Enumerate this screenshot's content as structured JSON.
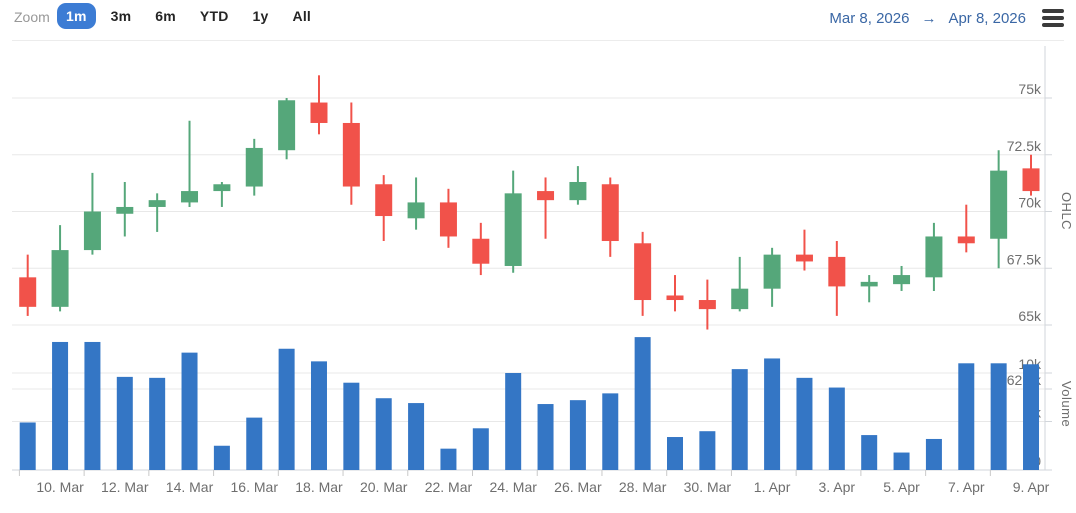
{
  "header": {
    "zoom_label": "Zoom",
    "range_buttons": [
      {
        "label": "1m",
        "selected": true
      },
      {
        "label": "3m",
        "selected": false
      },
      {
        "label": "6m",
        "selected": false
      },
      {
        "label": "YTD",
        "selected": false
      },
      {
        "label": "1y",
        "selected": false
      },
      {
        "label": "All",
        "selected": false
      }
    ],
    "date_range": {
      "from": "Mar 8, 2026",
      "arrow": "→",
      "to": "Apr 8, 2026"
    }
  },
  "colors": {
    "selected_button_bg": "#3c7cd4",
    "date_text": "#3a67a5",
    "up_candle": "#55a77a",
    "down_candle": "#f1524a",
    "volume_bar": "#3476c5",
    "gridline": "#e8e8e8",
    "axis_line": "#d2d6db",
    "axis_text": "#6e6e6e"
  },
  "chart_data": {
    "type": "candlestick",
    "subtype": "ohlc-with-volume-panes",
    "unit": "k",
    "legend_position": "none",
    "grid": true,
    "y_axis_ohlc": {
      "title": "OHLC",
      "range": [
        62.5,
        76.5
      ],
      "ticks": [
        {
          "label": "75k",
          "value": 75
        },
        {
          "label": "72.5k",
          "value": 72.5
        },
        {
          "label": "70k",
          "value": 70
        },
        {
          "label": "67.5k",
          "value": 67.5
        },
        {
          "label": "65k",
          "value": 65
        },
        {
          "label": "62.5k",
          "value": 62.5
        }
      ]
    },
    "y_axis_volume": {
      "title": "Volume",
      "range": [
        0,
        14
      ],
      "ticks": [
        {
          "label": "10k",
          "value": 10
        },
        {
          "label": "5k",
          "value": 5
        },
        {
          "label": "0",
          "value": 0
        }
      ]
    },
    "x_axis": {
      "tick_labels": [
        "10. Mar",
        "12. Mar",
        "14. Mar",
        "16. Mar",
        "18. Mar",
        "20. Mar",
        "22. Mar",
        "24. Mar",
        "26. Mar",
        "28. Mar",
        "30. Mar",
        "1. Apr",
        "3. Apr",
        "5. Apr",
        "7. Apr",
        "9. Apr"
      ],
      "label_start_index": 1,
      "label_step": 2
    },
    "candles": [
      {
        "date": "Mar 9",
        "open": 67.1,
        "high": 68.1,
        "low": 65.4,
        "close": 65.8,
        "volume": 4.9
      },
      {
        "date": "Mar 10",
        "open": 65.8,
        "high": 69.4,
        "low": 65.6,
        "close": 68.3,
        "volume": 13.2
      },
      {
        "date": "Mar 11",
        "open": 68.3,
        "high": 71.7,
        "low": 68.1,
        "close": 70.0,
        "volume": 13.2
      },
      {
        "date": "Mar 12",
        "open": 69.9,
        "high": 71.3,
        "low": 68.9,
        "close": 70.2,
        "volume": 9.6
      },
      {
        "date": "Mar 13",
        "open": 70.2,
        "high": 70.8,
        "low": 69.1,
        "close": 70.5,
        "volume": 9.5
      },
      {
        "date": "Mar 14",
        "open": 70.4,
        "high": 74.0,
        "low": 70.2,
        "close": 70.9,
        "volume": 12.1
      },
      {
        "date": "Mar 15",
        "open": 70.9,
        "high": 71.3,
        "low": 70.2,
        "close": 71.2,
        "volume": 2.5
      },
      {
        "date": "Mar 16",
        "open": 71.1,
        "high": 73.2,
        "low": 70.7,
        "close": 72.8,
        "volume": 5.4
      },
      {
        "date": "Mar 17",
        "open": 72.7,
        "high": 75.0,
        "low": 72.3,
        "close": 74.9,
        "volume": 12.5
      },
      {
        "date": "Mar 18",
        "open": 74.8,
        "high": 76.0,
        "low": 73.4,
        "close": 73.9,
        "volume": 11.2
      },
      {
        "date": "Mar 19",
        "open": 73.9,
        "high": 74.8,
        "low": 70.3,
        "close": 71.1,
        "volume": 9.0
      },
      {
        "date": "Mar 20",
        "open": 71.2,
        "high": 71.6,
        "low": 68.7,
        "close": 69.8,
        "volume": 7.4
      },
      {
        "date": "Mar 21",
        "open": 69.7,
        "high": 71.5,
        "low": 69.2,
        "close": 70.4,
        "volume": 6.9
      },
      {
        "date": "Mar 22",
        "open": 70.4,
        "high": 71.0,
        "low": 68.4,
        "close": 68.9,
        "volume": 2.2
      },
      {
        "date": "Mar 23",
        "open": 68.8,
        "high": 69.5,
        "low": 67.2,
        "close": 67.7,
        "volume": 4.3
      },
      {
        "date": "Mar 24",
        "open": 67.6,
        "high": 71.8,
        "low": 67.3,
        "close": 70.8,
        "volume": 10.0
      },
      {
        "date": "Mar 25",
        "open": 70.9,
        "high": 71.5,
        "low": 68.8,
        "close": 70.5,
        "volume": 6.8
      },
      {
        "date": "Mar 26",
        "open": 70.5,
        "high": 72.0,
        "low": 70.3,
        "close": 71.3,
        "volume": 7.2
      },
      {
        "date": "Mar 27",
        "open": 71.2,
        "high": 71.5,
        "low": 68.0,
        "close": 68.7,
        "volume": 7.9
      },
      {
        "date": "Mar 28",
        "open": 68.6,
        "high": 69.1,
        "low": 65.4,
        "close": 66.1,
        "volume": 13.7
      },
      {
        "date": "Mar 29",
        "open": 66.3,
        "high": 67.2,
        "low": 65.6,
        "close": 66.1,
        "volume": 3.4
      },
      {
        "date": "Mar 30",
        "open": 66.1,
        "high": 67.0,
        "low": 64.8,
        "close": 65.7,
        "volume": 4.0
      },
      {
        "date": "Mar 31",
        "open": 65.7,
        "high": 68.0,
        "low": 65.6,
        "close": 66.6,
        "volume": 10.4
      },
      {
        "date": "Apr 1",
        "open": 66.6,
        "high": 68.4,
        "low": 65.8,
        "close": 68.1,
        "volume": 11.5
      },
      {
        "date": "Apr 2",
        "open": 68.1,
        "high": 69.2,
        "low": 67.4,
        "close": 67.8,
        "volume": 9.5
      },
      {
        "date": "Apr 3",
        "open": 68.0,
        "high": 68.7,
        "low": 65.4,
        "close": 66.7,
        "volume": 8.5
      },
      {
        "date": "Apr 4",
        "open": 66.7,
        "high": 67.2,
        "low": 66.0,
        "close": 66.9,
        "volume": 3.6
      },
      {
        "date": "Apr 5",
        "open": 66.8,
        "high": 67.6,
        "low": 66.5,
        "close": 67.2,
        "volume": 1.8
      },
      {
        "date": "Apr 6",
        "open": 67.1,
        "high": 69.5,
        "low": 66.5,
        "close": 68.9,
        "volume": 3.2
      },
      {
        "date": "Apr 7",
        "open": 68.9,
        "high": 70.3,
        "low": 68.2,
        "close": 68.6,
        "volume": 11.0
      },
      {
        "date": "Apr 8",
        "open": 68.8,
        "high": 72.7,
        "low": 67.5,
        "close": 71.8,
        "volume": 11.0
      },
      {
        "date": "Apr 9",
        "open": 71.9,
        "high": 72.5,
        "low": 70.7,
        "close": 70.9,
        "volume": 10.9
      }
    ]
  }
}
